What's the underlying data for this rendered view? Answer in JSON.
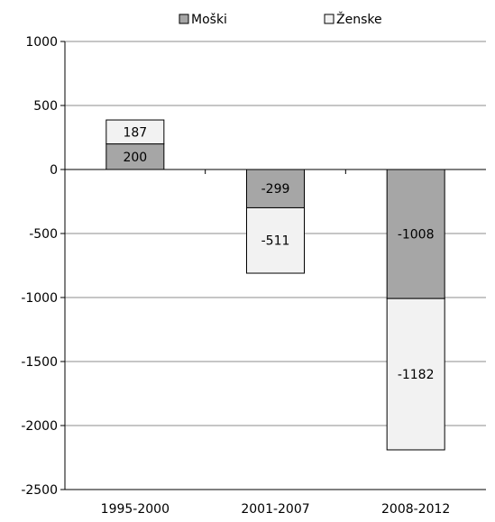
{
  "chart_data": {
    "type": "bar",
    "stacked": true,
    "title": "",
    "xlabel": "",
    "ylabel": "",
    "categories": [
      "1995-2000",
      "2001-2007",
      "2008-2012"
    ],
    "series": [
      {
        "name": "Moški",
        "values": [
          200,
          -299,
          -1008
        ],
        "color": "#a6a6a6"
      },
      {
        "name": "Ženske",
        "values": [
          187,
          -511,
          -1182
        ],
        "color": "#f2f2f2"
      }
    ],
    "ylim": [
      -2500,
      1000
    ],
    "yticks": [
      1000,
      500,
      0,
      -500,
      -1000,
      -1500,
      -2000,
      -2500
    ],
    "ytick_labels": [
      "1000",
      "500",
      "0",
      "-500",
      "-1000",
      "-1500",
      "-2000",
      "-2500"
    ],
    "grid": true,
    "legend_position": "top"
  }
}
